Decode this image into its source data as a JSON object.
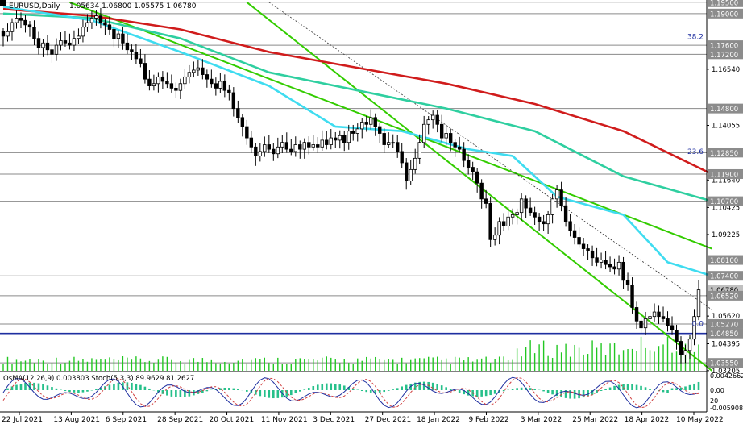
{
  "header": {
    "symbol": "EURUSD,Daily",
    "ohlc": "1.05634 1.06800 1.05575 1.06780"
  },
  "colors": {
    "background": "#ffffff",
    "bull_candle": "#2e7d32",
    "bear_candle": "#000000",
    "ma_red": "#d01c1c",
    "ma_teal": "#2fcfa0",
    "ma_cyan": "#3fdcf0",
    "channel": "#33cc00",
    "hline_gray": "#8a8a8a",
    "hline_blue": "#1f2fa0",
    "volume": "#22c722",
    "osma_hist": "#26c08a",
    "stoch_main": "#1f2fa0",
    "stoch_signal": "#d04040",
    "price_tag_bg": "#8c8c8c"
  },
  "fib_labels": [
    {
      "text": "38.2",
      "price": 1.1777
    },
    {
      "text": "23.6",
      "price": 1.1269
    },
    {
      "text": "0.0",
      "price": 1.0508
    }
  ],
  "price_tags": [
    {
      "text": "1.19500",
      "price": 1.195,
      "line": true
    },
    {
      "text": "1.19000",
      "price": 1.19,
      "line": true
    },
    {
      "text": "1.17600",
      "price": 1.176,
      "line": true
    },
    {
      "text": "1.17200",
      "price": 1.172,
      "line": true
    },
    {
      "text": "1.14800",
      "price": 1.148,
      "line": true
    },
    {
      "text": "1.12850",
      "price": 1.1285,
      "line": true
    },
    {
      "text": "1.11900",
      "price": 1.119,
      "line": true
    },
    {
      "text": "1.10700",
      "price": 1.107,
      "line": true
    },
    {
      "text": "1.08100",
      "price": 1.081,
      "line": true
    },
    {
      "text": "1.07400",
      "price": 1.074,
      "line": true
    },
    {
      "text": "1.06780",
      "price": 1.0678,
      "line": false
    },
    {
      "text": "1.06520",
      "price": 1.0652,
      "line": true
    },
    {
      "text": "1.05270",
      "price": 1.0527,
      "line": true
    },
    {
      "text": "1.04850",
      "price": 1.0485,
      "line": true
    },
    {
      "text": "1.03550",
      "price": 1.0355,
      "line": true
    }
  ],
  "indicator_panel": {
    "label": "OsMA(12,26,9) 0.003803 Stoch(5,3,3) 89.9629 81.2627",
    "scale": [
      "0.0042662",
      "0.00",
      "20",
      "-0.005908"
    ]
  },
  "chart_data": {
    "type": "candlestick",
    "title": "EURUSD,Daily",
    "ylim": [
      1.032,
      1.196
    ],
    "y_ticks": [
      "1.16540",
      "1.14055",
      "1.11640",
      "1.10425",
      "1.09225",
      "1.05620",
      "1.04395",
      "1.03205"
    ],
    "x_ticks": [
      "22 Jul 2021",
      "13 Aug 2021",
      "6 Sep 2021",
      "28 Sep 2021",
      "20 Oct 2021",
      "11 Nov 2021",
      "3 Dec 2021",
      "27 Dec 2021",
      "18 Jan 2022",
      "9 Feb 2022",
      "3 Mar 2022",
      "25 Mar 2022",
      "18 Apr 2022",
      "10 May 2022"
    ],
    "close": [
      1.18,
      1.182,
      1.186,
      1.188,
      1.187,
      1.185,
      1.184,
      1.179,
      1.175,
      1.177,
      1.174,
      1.172,
      1.176,
      1.178,
      1.177,
      1.176,
      1.179,
      1.18,
      1.184,
      1.186,
      1.188,
      1.189,
      1.186,
      1.185,
      1.183,
      1.179,
      1.181,
      1.177,
      1.174,
      1.173,
      1.17,
      1.168,
      1.161,
      1.158,
      1.159,
      1.162,
      1.16,
      1.159,
      1.157,
      1.156,
      1.159,
      1.162,
      1.164,
      1.165,
      1.166,
      1.163,
      1.161,
      1.159,
      1.157,
      1.16,
      1.156,
      1.155,
      1.148,
      1.144,
      1.14,
      1.135,
      1.131,
      1.127,
      1.129,
      1.132,
      1.13,
      1.128,
      1.131,
      1.133,
      1.13,
      1.129,
      1.132,
      1.13,
      1.133,
      1.131,
      1.132,
      1.131,
      1.134,
      1.132,
      1.135,
      1.134,
      1.136,
      1.133,
      1.138,
      1.137,
      1.139,
      1.142,
      1.141,
      1.144,
      1.14,
      1.137,
      1.132,
      1.133,
      1.133,
      1.129,
      1.124,
      1.116,
      1.121,
      1.126,
      1.133,
      1.141,
      1.143,
      1.145,
      1.141,
      1.135,
      1.137,
      1.133,
      1.131,
      1.13,
      1.125,
      1.122,
      1.12,
      1.115,
      1.108,
      1.106,
      1.09,
      1.092,
      1.098,
      1.096,
      1.1,
      1.101,
      1.102,
      1.108,
      1.104,
      1.102,
      1.1,
      1.098,
      1.097,
      1.101,
      1.108,
      1.112,
      1.105,
      1.098,
      1.094,
      1.091,
      1.088,
      1.086,
      1.085,
      1.082,
      1.08,
      1.081,
      1.079,
      1.078,
      1.077,
      1.08,
      1.072,
      1.07,
      1.06,
      1.054,
      1.051,
      1.055,
      1.056,
      1.058,
      1.056,
      1.055,
      1.052,
      1.05,
      1.045,
      1.039,
      1.041,
      1.046,
      1.056,
      1.0678
    ],
    "series": [
      {
        "name": "",
        "color": "#d01c1c",
        "points": [
          [
            0,
            1.192
          ],
          [
            20,
            1.189
          ],
          [
            40,
            1.183
          ],
          [
            60,
            1.173
          ],
          [
            80,
            1.166
          ],
          [
            100,
            1.159
          ],
          [
            120,
            1.15
          ],
          [
            140,
            1.138
          ],
          [
            160,
            1.119
          ]
        ]
      },
      {
        "name": "",
        "color": "#2fcfa0",
        "points": [
          [
            0,
            1.19
          ],
          [
            20,
            1.188
          ],
          [
            40,
            1.179
          ],
          [
            60,
            1.164
          ],
          [
            80,
            1.156
          ],
          [
            100,
            1.148
          ],
          [
            120,
            1.138
          ],
          [
            140,
            1.118
          ],
          [
            160,
            1.107
          ]
        ]
      },
      {
        "name": "",
        "color": "#3fdcf0",
        "points": [
          [
            0,
            1.193
          ],
          [
            20,
            1.187
          ],
          [
            40,
            1.173
          ],
          [
            60,
            1.158
          ],
          [
            75,
            1.14
          ],
          [
            90,
            1.138
          ],
          [
            105,
            1.13
          ],
          [
            115,
            1.127
          ],
          [
            125,
            1.109
          ],
          [
            140,
            1.101
          ],
          [
            150,
            1.08
          ],
          [
            160,
            1.074
          ]
        ]
      }
    ],
    "channel_lines": [
      {
        "points": [
          [
            15,
            1.195
          ],
          [
            160,
            1.086
          ]
        ],
        "style": "solid"
      },
      {
        "points": [
          [
            55,
            1.195
          ],
          [
            160,
            1.032
          ]
        ],
        "style": "solid"
      },
      {
        "points": [
          [
            60,
            1.195
          ],
          [
            160,
            1.059
          ]
        ],
        "style": "dotted"
      }
    ]
  }
}
